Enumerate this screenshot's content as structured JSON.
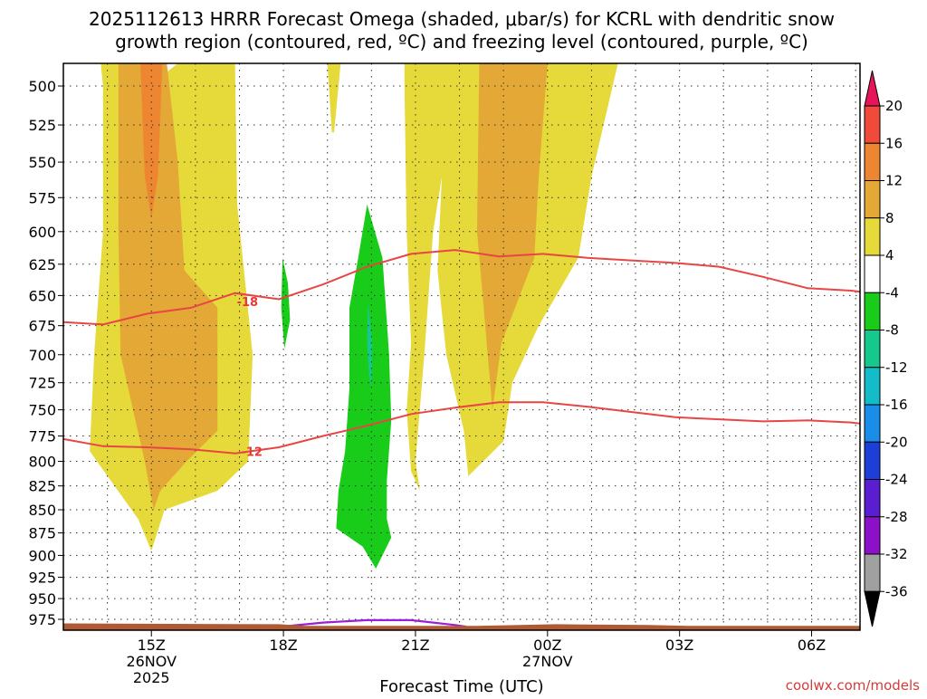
{
  "chart_data": {
    "type": "time-height-section",
    "title_line1": "2025112613 HRRR Forecast Omega (shaded, μbar/s) for KCRL with dendritic snow",
    "title_line2": "growth region (contoured, red, ºC) and freezing level (contoured, purple, ºC)",
    "xlabel": "Forecast Time (UTC)",
    "credit": "coolwx.com/models",
    "x_range_hours": [
      13.0,
      31.1
    ],
    "x_ticks": [
      {
        "hour": 15,
        "label": "15Z",
        "sub1": "26NOV",
        "sub2": "2025"
      },
      {
        "hour": 18,
        "label": "18Z",
        "sub1": "",
        "sub2": ""
      },
      {
        "hour": 21,
        "label": "21Z",
        "sub1": "",
        "sub2": ""
      },
      {
        "hour": 24,
        "label": "00Z",
        "sub1": "27NOV",
        "sub2": ""
      },
      {
        "hour": 27,
        "label": "03Z",
        "sub1": "",
        "sub2": ""
      },
      {
        "hour": 30,
        "label": "06Z",
        "sub1": "",
        "sub2": ""
      }
    ],
    "y_ticks": [
      500,
      525,
      550,
      575,
      600,
      625,
      650,
      675,
      700,
      725,
      750,
      775,
      800,
      825,
      850,
      875,
      900,
      925,
      950,
      975
    ],
    "colorbar": {
      "labels": [
        "20",
        "16",
        "12",
        "8",
        "4",
        "-4",
        "-8",
        "-12",
        "-16",
        "-20",
        "-24",
        "-28",
        "-32",
        "-36"
      ],
      "colors": [
        "#e8145a",
        "#f04a3a",
        "#ee8631",
        "#e3a836",
        "#e6d93a",
        "#ffffff",
        "#19cc19",
        "#15c98c",
        "#13bcc8",
        "#1a8de8",
        "#1e3ed8",
        "#5a1ed0",
        "#8c10c8",
        "#a0a0a0",
        "#000000"
      ]
    },
    "omega_regions": [
      {
        "level": "4",
        "color": "#e6d93a",
        "points": [
          [
            13.85,
            486
          ],
          [
            14.75,
            486
          ],
          [
            14.95,
            500
          ],
          [
            15.6,
            486
          ],
          [
            16.9,
            486
          ],
          [
            16.95,
            580
          ],
          [
            17.3,
            700
          ],
          [
            17.2,
            800
          ],
          [
            16.5,
            830
          ],
          [
            15.3,
            850
          ],
          [
            15.0,
            895
          ],
          [
            14.7,
            860
          ],
          [
            13.6,
            790
          ],
          [
            13.7,
            700
          ],
          [
            13.9,
            600
          ],
          [
            13.9,
            500
          ]
        ]
      },
      {
        "level": "4",
        "color": "#e6d93a",
        "points": [
          [
            19.0,
            486
          ],
          [
            19.3,
            486
          ],
          [
            19.15,
            530
          ],
          [
            19.1,
            530
          ]
        ]
      },
      {
        "level": "4",
        "color": "#e6d93a",
        "points": [
          [
            20.75,
            486
          ],
          [
            25.6,
            486
          ],
          [
            25.0,
            560
          ],
          [
            24.7,
            620
          ],
          [
            23.8,
            675
          ],
          [
            23.2,
            725
          ],
          [
            23.0,
            780
          ],
          [
            22.2,
            815
          ],
          [
            22.1,
            770
          ],
          [
            21.7,
            700
          ],
          [
            21.5,
            630
          ],
          [
            21.6,
            560
          ],
          [
            21.4,
            600
          ],
          [
            21.2,
            700
          ],
          [
            21.0,
            800
          ],
          [
            21.1,
            830
          ],
          [
            20.9,
            810
          ],
          [
            20.8,
            750
          ],
          [
            20.9,
            690
          ],
          [
            20.8,
            600
          ],
          [
            20.75,
            500
          ]
        ]
      },
      {
        "level": "8",
        "color": "#e3a836",
        "points": [
          [
            14.25,
            486
          ],
          [
            15.35,
            486
          ],
          [
            15.6,
            550
          ],
          [
            15.75,
            630
          ],
          [
            16.5,
            660
          ],
          [
            16.5,
            770
          ],
          [
            15.8,
            800
          ],
          [
            15.2,
            830
          ],
          [
            15.05,
            850
          ],
          [
            14.85,
            800
          ],
          [
            14.3,
            700
          ],
          [
            14.25,
            600
          ]
        ]
      },
      {
        "level": "8",
        "color": "#e3a836",
        "points": [
          [
            22.45,
            486
          ],
          [
            24.0,
            486
          ],
          [
            23.8,
            560
          ],
          [
            23.7,
            620
          ],
          [
            22.95,
            690
          ],
          [
            22.75,
            750
          ],
          [
            22.55,
            660
          ],
          [
            22.4,
            600
          ]
        ]
      },
      {
        "level": "12",
        "color": "#ee8631",
        "points": [
          [
            14.75,
            486
          ],
          [
            15.25,
            486
          ],
          [
            15.15,
            560
          ],
          [
            15.0,
            590
          ],
          [
            14.85,
            560
          ]
        ]
      },
      {
        "level": "-4",
        "color": "#19cc19",
        "points": [
          [
            19.9,
            580
          ],
          [
            20.25,
            620
          ],
          [
            20.4,
            700
          ],
          [
            20.45,
            760
          ],
          [
            20.35,
            820
          ],
          [
            20.35,
            860
          ],
          [
            20.45,
            880
          ],
          [
            20.1,
            915
          ],
          [
            19.8,
            890
          ],
          [
            19.2,
            870
          ],
          [
            19.25,
            830
          ],
          [
            19.4,
            790
          ],
          [
            19.5,
            730
          ],
          [
            19.5,
            660
          ],
          [
            19.7,
            620
          ]
        ]
      },
      {
        "level": "-4",
        "color": "#19cc19",
        "points": [
          [
            17.98,
            620
          ],
          [
            18.1,
            640
          ],
          [
            18.15,
            670
          ],
          [
            18.02,
            695
          ],
          [
            17.95,
            660
          ]
        ]
      },
      {
        "level": "-8",
        "color": "#15c98c",
        "points": [
          [
            19.92,
            655
          ],
          [
            20.02,
            690
          ],
          [
            20.0,
            730
          ],
          [
            19.95,
            720
          ],
          [
            19.9,
            690
          ]
        ]
      }
    ],
    "dgz_contours": [
      {
        "label": "-18",
        "label_hour": 17.1,
        "label_p": 655,
        "points": [
          [
            13.0,
            672
          ],
          [
            13.9,
            674
          ],
          [
            14.9,
            665
          ],
          [
            15.9,
            660
          ],
          [
            16.9,
            648
          ],
          [
            17.9,
            653
          ],
          [
            18.9,
            641
          ],
          [
            19.9,
            627
          ],
          [
            20.9,
            617
          ],
          [
            21.9,
            614
          ],
          [
            22.9,
            619
          ],
          [
            23.9,
            617
          ],
          [
            24.9,
            620
          ],
          [
            25.9,
            622
          ],
          [
            26.9,
            624
          ],
          [
            27.9,
            627
          ],
          [
            28.9,
            635
          ],
          [
            29.9,
            644
          ],
          [
            30.9,
            646
          ],
          [
            31.1,
            647
          ]
        ]
      },
      {
        "label": "-12",
        "label_hour": 17.2,
        "label_p": 790,
        "points": [
          [
            13.0,
            778
          ],
          [
            13.9,
            785
          ],
          [
            14.9,
            786
          ],
          [
            15.9,
            788
          ],
          [
            16.9,
            792
          ],
          [
            17.9,
            786
          ],
          [
            18.9,
            775
          ],
          [
            19.9,
            765
          ],
          [
            20.9,
            754
          ],
          [
            21.9,
            748
          ],
          [
            22.9,
            743
          ],
          [
            23.9,
            743
          ],
          [
            24.9,
            747
          ],
          [
            25.9,
            752
          ],
          [
            26.9,
            757
          ],
          [
            27.9,
            759
          ],
          [
            28.9,
            761
          ],
          [
            29.9,
            760
          ],
          [
            30.9,
            762
          ],
          [
            31.1,
            763
          ]
        ]
      }
    ],
    "freezing_level_contour": {
      "points": [
        [
          17.95,
          984
        ],
        [
          18.9,
          979
        ],
        [
          19.9,
          976
        ],
        [
          20.9,
          976
        ],
        [
          21.9,
          982
        ],
        [
          22.15,
          984
        ]
      ]
    },
    "terrain": {
      "color": "#b05a35",
      "points": [
        [
          13.0,
          980
        ],
        [
          17.9,
          981
        ],
        [
          18.5,
          983
        ],
        [
          22.4,
          983
        ],
        [
          24.2,
          981
        ],
        [
          26.3,
          982
        ],
        [
          27.2,
          983
        ],
        [
          31.1,
          983
        ]
      ]
    }
  }
}
